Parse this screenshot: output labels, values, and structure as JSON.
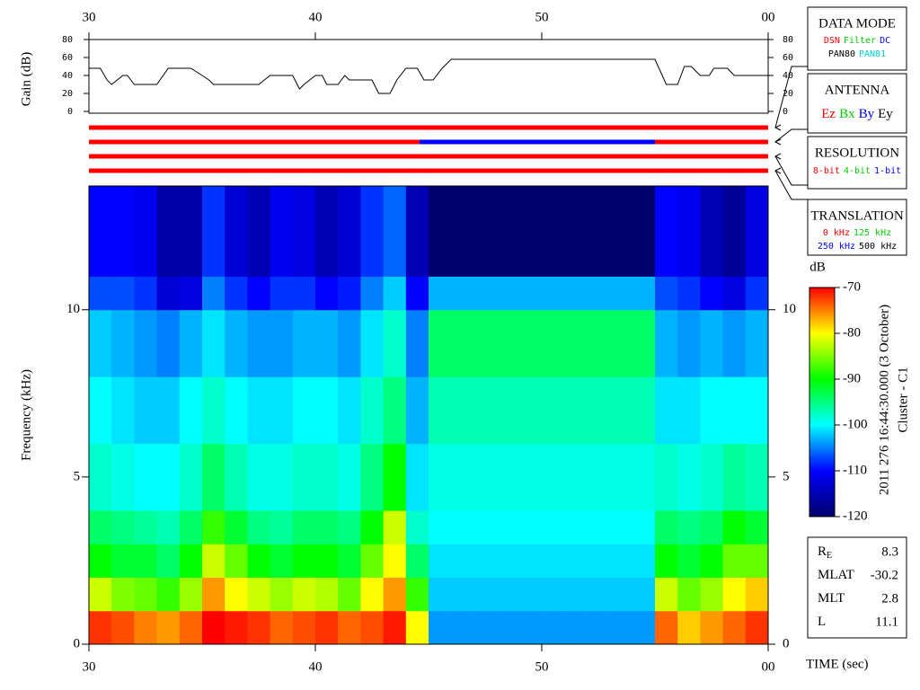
{
  "chart_data": [
    {
      "type": "line",
      "ylabel": "Gain (dB)",
      "color": "#000000",
      "x": [
        30,
        30.5,
        30.8,
        31,
        31.5,
        31.7,
        32,
        33,
        33.5,
        34.5,
        35,
        35.3,
        35.5,
        37.5,
        38,
        39,
        39.3,
        39.5,
        40,
        40.3,
        40.5,
        41,
        41.3,
        41.5,
        42.5,
        42.8,
        43.3,
        43.6,
        44,
        44.5,
        44.8,
        45.2,
        45.6,
        46,
        55,
        55.5,
        56,
        56.3,
        56.6,
        57,
        57.4,
        57.6,
        58.2,
        58.5,
        60
      ],
      "values": [
        48,
        48,
        35,
        30,
        40,
        40,
        30,
        30,
        48,
        48,
        40,
        35,
        30,
        30,
        40,
        40,
        25,
        30,
        40,
        40,
        30,
        30,
        40,
        35,
        35,
        20,
        20,
        35,
        48,
        48,
        35,
        35,
        48,
        58,
        58,
        30,
        30,
        50,
        50,
        40,
        40,
        48,
        48,
        40,
        40
      ],
      "xlim": [
        30,
        60
      ],
      "xticks": [
        30,
        40,
        50,
        {
          "value": 60,
          "label": "00"
        }
      ],
      "ylim": [
        0,
        80
      ],
      "yticks": [
        0,
        20,
        40,
        60,
        80
      ]
    },
    {
      "type": "heatmap",
      "ylabel": "Frequency (kHz)",
      "xlabel": "TIME (sec)",
      "x_edges": [
        30,
        31,
        32,
        33,
        34,
        35,
        36,
        37,
        38,
        39,
        40,
        41,
        42,
        43,
        44,
        45,
        46,
        47,
        48,
        49,
        50,
        51,
        52,
        53,
        54,
        55,
        56,
        57,
        58,
        59,
        60
      ],
      "y_edges": [
        0,
        1,
        2,
        3,
        4,
        6,
        8,
        10,
        11,
        13.7
      ],
      "z": [
        [
          -72,
          -73,
          -75,
          -76,
          -74,
          -70,
          -71,
          -72,
          -74,
          -73,
          -72,
          -74,
          -73,
          -71,
          -80,
          -104,
          -104,
          -104,
          -104,
          -104,
          -104,
          -104,
          -104,
          -104,
          -104,
          -74,
          -78,
          -76,
          -74,
          -72
        ],
        [
          -82,
          -85,
          -86,
          -88,
          -84,
          -76,
          -80,
          -82,
          -84,
          -82,
          -83,
          -86,
          -80,
          -76,
          -88,
          -102,
          -102,
          -102,
          -102,
          -102,
          -102,
          -102,
          -102,
          -102,
          -102,
          -82,
          -86,
          -84,
          -80,
          -78
        ],
        [
          -90,
          -92,
          -92,
          -94,
          -90,
          -82,
          -86,
          -90,
          -92,
          -90,
          -90,
          -92,
          -86,
          -80,
          -94,
          -101,
          -101,
          -101,
          -101,
          -101,
          -101,
          -101,
          -101,
          -101,
          -101,
          -90,
          -92,
          -90,
          -86,
          -86
        ],
        [
          -94,
          -95,
          -96,
          -97,
          -94,
          -88,
          -92,
          -95,
          -96,
          -94,
          -94,
          -95,
          -90,
          -82,
          -98,
          -100,
          -100,
          -100,
          -100,
          -100,
          -100,
          -100,
          -100,
          -100,
          -100,
          -94,
          -95,
          -94,
          -90,
          -92
        ],
        [
          -98,
          -99,
          -100,
          -100,
          -98,
          -94,
          -97,
          -99,
          -99,
          -98,
          -98,
          -99,
          -95,
          -90,
          -101,
          -99,
          -99,
          -99,
          -99,
          -99,
          -99,
          -99,
          -99,
          -99,
          -99,
          -98,
          -99,
          -98,
          -96,
          -97
        ],
        [
          -100,
          -101,
          -102,
          -102,
          -100,
          -98,
          -100,
          -101,
          -101,
          -100,
          -100,
          -101,
          -98,
          -95,
          -103,
          -97,
          -97,
          -97,
          -97,
          -97,
          -97,
          -97,
          -97,
          -97,
          -97,
          -101,
          -101,
          -100,
          -100,
          -100
        ],
        [
          -102,
          -103,
          -104,
          -105,
          -103,
          -101,
          -103,
          -104,
          -104,
          -103,
          -103,
          -104,
          -101,
          -98,
          -105,
          -94,
          -94,
          -94,
          -94,
          -94,
          -94,
          -94,
          -94,
          -94,
          -94,
          -103,
          -104,
          -103,
          -104,
          -103
        ],
        [
          -107,
          -107,
          -108,
          -113,
          -112,
          -105,
          -108,
          -110,
          -108,
          -108,
          -110,
          -109,
          -105,
          -102,
          -110,
          -103,
          -103,
          -103,
          -103,
          -103,
          -103,
          -103,
          -103,
          -103,
          -103,
          -107,
          -108,
          -110,
          -112,
          -108
        ],
        [
          -110,
          -110,
          -111,
          -116,
          -116,
          -108,
          -113,
          -115,
          -111,
          -112,
          -115,
          -113,
          -108,
          -106,
          -115,
          -120,
          -120,
          -120,
          -120,
          -120,
          -120,
          -120,
          -120,
          -120,
          -120,
          -110,
          -111,
          -115,
          -117,
          -112
        ]
      ],
      "xlim": [
        30,
        60
      ],
      "xticks": [
        30,
        40,
        50,
        {
          "value": 60,
          "label": "00"
        }
      ],
      "ylim": [
        0,
        13.7
      ],
      "yticks": [
        0,
        5,
        10
      ],
      "colormap": [
        "#00006a",
        "#0000ff",
        "#00ffff",
        "#00ff00",
        "#ffff00",
        "#ff0000"
      ],
      "colorbar": {
        "label": "dB",
        "lim": [
          -120,
          -70
        ],
        "ticks": [
          -120,
          -110,
          -100,
          -90,
          -80,
          -70
        ]
      }
    }
  ],
  "panels": [
    {
      "title": "DATA MODE",
      "rows": [
        [
          {
            "text": "DSN",
            "color": "#ff0000"
          },
          {
            "text": "Filter",
            "color": "#00cc00"
          },
          {
            "text": "DC",
            "color": "#0000ff"
          }
        ],
        [
          {
            "text": "PAN80",
            "color": "#000000"
          },
          {
            "text": "PAN81",
            "color": "#00cccc"
          }
        ]
      ],
      "segments": [
        {
          "start": 30,
          "end": 60,
          "color": "#ff0000"
        }
      ]
    },
    {
      "title": "ANTENNA",
      "rows": [
        [
          {
            "text": "Ez",
            "color": "#ff0000"
          },
          {
            "text": "Bx",
            "color": "#00cc00"
          },
          {
            "text": "By",
            "color": "#0000ff"
          },
          {
            "text": "Ey",
            "color": "#000000"
          }
        ]
      ],
      "segments": [
        {
          "start": 30,
          "end": 44.6,
          "color": "#ff0000"
        },
        {
          "start": 44.6,
          "end": 55,
          "color": "#0000ff"
        },
        {
          "start": 55,
          "end": 60,
          "color": "#ff0000"
        }
      ]
    },
    {
      "title": "RESOLUTION",
      "rows": [
        [
          {
            "text": "8-bit",
            "color": "#ff0000"
          },
          {
            "text": "4-bit",
            "color": "#00cc00"
          },
          {
            "text": "1-bit",
            "color": "#0000ff"
          }
        ]
      ],
      "segments": [
        {
          "start": 30,
          "end": 60,
          "color": "#ff0000"
        }
      ]
    },
    {
      "title": "TRANSLATION",
      "rows": [
        [
          {
            "text": "0 kHz",
            "color": "#ff0000"
          },
          {
            "text": "125 kHz",
            "color": "#00cc00"
          }
        ],
        [
          {
            "text": "250 kHz",
            "color": "#0000ff"
          },
          {
            "text": "500 kHz",
            "color": "#000000"
          }
        ]
      ],
      "segments": [
        {
          "start": 30,
          "end": 60,
          "color": "#ff0000"
        }
      ]
    }
  ],
  "timestamp": "2011 276 16:44:30.000 (3 October)",
  "spacecraft": "Cluster - C1",
  "info": [
    {
      "label": "R",
      "sub": "E",
      "value": 8.3
    },
    {
      "label": "MLAT",
      "value": -30.2
    },
    {
      "label": "MLT",
      "value": 2.8
    },
    {
      "label": "L",
      "value": 11.1
    }
  ]
}
